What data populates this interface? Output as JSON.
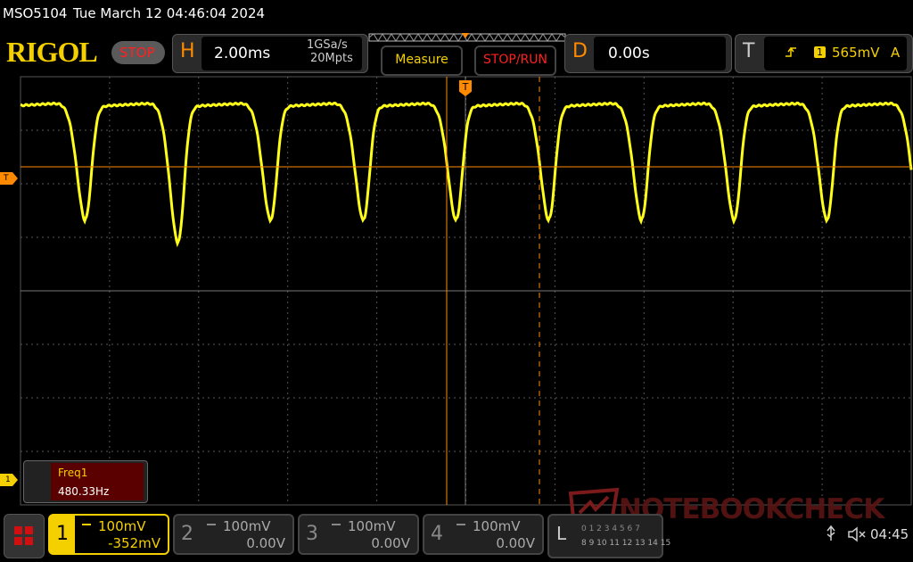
{
  "status_bar": {
    "model": "MSO5104",
    "datetime": "Tue March 12 04:46:04 2024"
  },
  "toolbar": {
    "logo": "RIGOL",
    "run_state": "STOP",
    "horizontal": {
      "label": "H",
      "timebase": "2.00ms",
      "sample_rate": "1GSa/s",
      "memory_depth": "20Mpts"
    },
    "buttons": [
      "Measure",
      "STOP/RUN"
    ],
    "delay": {
      "label": "D",
      "value": "0.00s"
    },
    "trigger": {
      "label": "T",
      "source": "1",
      "level": "565mV",
      "coupling": "A"
    }
  },
  "markers": {
    "trigger_position": "T",
    "trigger_level": "T",
    "channel1": "1"
  },
  "measurement": {
    "name": "Freq1",
    "value": "480.33Hz"
  },
  "channels": [
    {
      "number": "1",
      "scale": "100mV",
      "offset": "-352mV"
    },
    {
      "number": "2",
      "scale": "100mV",
      "offset": "0.00V"
    },
    {
      "number": "3",
      "scale": "100mV",
      "offset": "0.00V"
    },
    {
      "number": "4",
      "scale": "100mV",
      "offset": "0.00V"
    }
  ],
  "logic": {
    "label": "L",
    "row1": "0 1 2 3 4 5 6 7",
    "row2": "8 9 10 11 12 13 14 15"
  },
  "clock": "04:45",
  "watermark": "NOTEBOOKCHECK"
}
